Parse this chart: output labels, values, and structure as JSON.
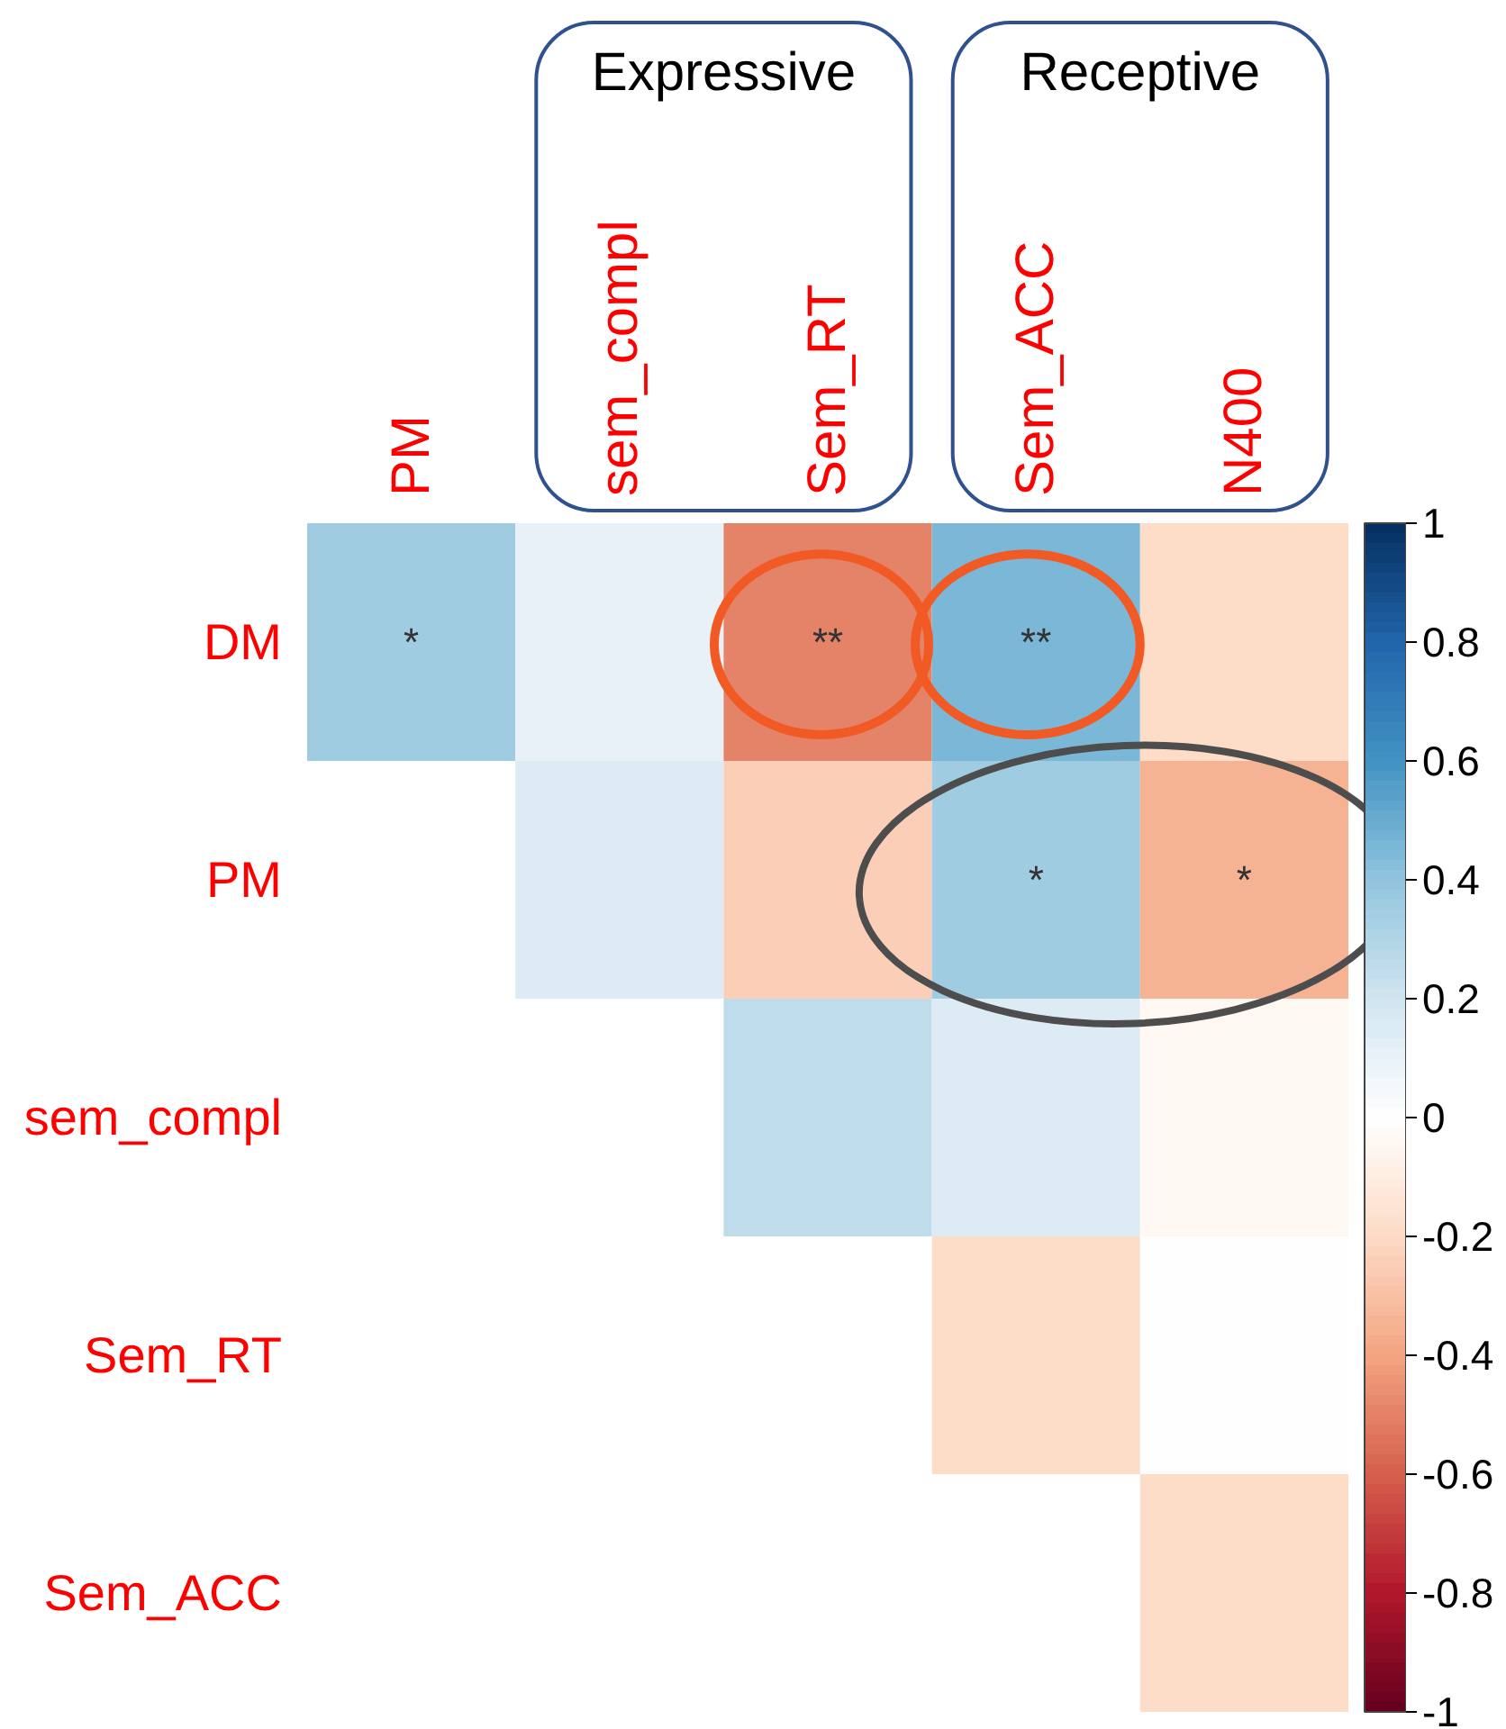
{
  "chart_data": {
    "type": "heatmap",
    "categories": [
      "PM",
      "sem_compl",
      "Sem_RT",
      "Sem_ACC",
      "N400"
    ],
    "y_categories": [
      "DM",
      "PM",
      "sem_compl",
      "Sem_RT",
      "Sem_ACC"
    ],
    "cells": [
      [
        0.35,
        0.1,
        -0.5,
        0.45,
        -0.2
      ],
      [
        null,
        0.15,
        -0.25,
        0.35,
        -0.35
      ],
      [
        null,
        null,
        0.25,
        0.15,
        -0.05
      ],
      [
        null,
        null,
        null,
        -0.2,
        0.0
      ],
      [
        null,
        null,
        null,
        null,
        -0.2
      ]
    ],
    "cell_labels": [
      [
        "*",
        null,
        "**",
        "**",
        null
      ],
      [
        null,
        null,
        null,
        "*",
        "*"
      ],
      [
        null,
        null,
        null,
        null,
        null
      ],
      [
        null,
        null,
        null,
        null,
        null
      ],
      [
        null,
        null,
        null,
        null,
        null
      ]
    ],
    "clim": [
      -1,
      1
    ],
    "cticks": [
      -1,
      -0.8,
      -0.6,
      -0.4,
      -0.2,
      0,
      0.2,
      0.4,
      0.6,
      0.8,
      1
    ],
    "annotations": [
      "Expressive",
      "Receptive"
    ]
  }
}
